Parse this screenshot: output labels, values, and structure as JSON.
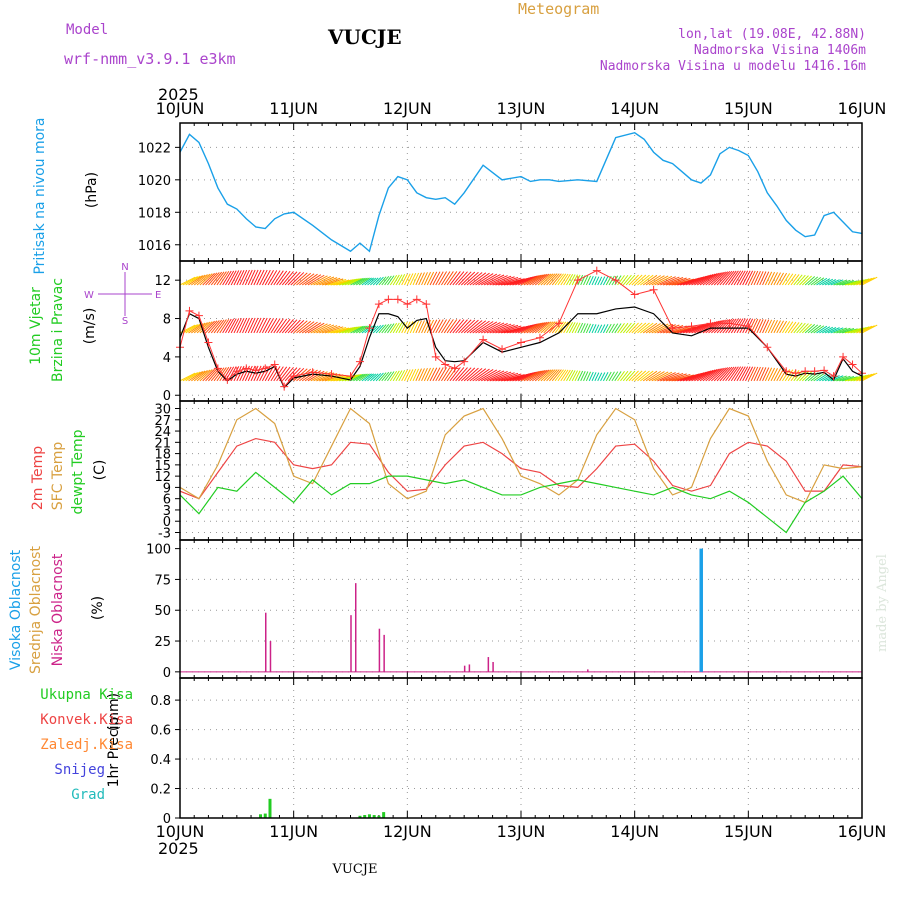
{
  "header": {
    "model_label": "Model",
    "model_name": "wrf-nmm_v3.9.1  e3km",
    "station": "VUCJE",
    "meteogram_label": "Meteogram",
    "coords": "lon,lat (19.08E, 42.88N)",
    "altitude": "Nadmorska Visina 1406m",
    "model_altitude": "Nadmorska Visina u modelu 1416.16m",
    "year_top": "2025",
    "year_bottom": "2025",
    "footer_station": "VUCJE",
    "credit": "made by Angel"
  },
  "colors": {
    "pressure": "#1aa0e8",
    "wind_label": "#22cc22",
    "wind_speed": "#000000",
    "wind_gust": "#ff3333",
    "temp2m": "#ee4444",
    "sfc_temp": "#d8a040",
    "dewpt": "#22cc22",
    "cloud_high": "#1aa0e8",
    "cloud_mid": "#d8a040",
    "cloud_low": "#cc2288",
    "precip_total": "#22cc22",
    "precip_conv": "#ee4444",
    "precip_frozen": "#ff8833",
    "snow": "#4444dd",
    "graupel": "#22bbbb",
    "purple": "#aa44cc"
  },
  "chart_data": [
    {
      "type": "line",
      "id": "pressure",
      "ylabel_name": "Pritisak na nivou mora",
      "ylabel_unit": "(hPa)",
      "x_ticks": [
        "10JUN",
        "11JUN",
        "12JUN",
        "13JUN",
        "14JUN",
        "15JUN",
        "16JUN"
      ],
      "ylim": [
        1015,
        1023.5
      ],
      "yticks": [
        1016,
        1018,
        1020,
        1022
      ],
      "x_hours": [
        0,
        2,
        4,
        6,
        8,
        10,
        12,
        14,
        16,
        18,
        20,
        22,
        24,
        28,
        32,
        36,
        38,
        40,
        42,
        44,
        46,
        48,
        50,
        52,
        54,
        56,
        58,
        60,
        64,
        68,
        72,
        74,
        76,
        78,
        80,
        84,
        88,
        92,
        96,
        98,
        100,
        102,
        104,
        106,
        108,
        110,
        112,
        114,
        116,
        118,
        120,
        122,
        124,
        126,
        128,
        130,
        132,
        134,
        136,
        138,
        140,
        142,
        144
      ],
      "values": [
        1021.7,
        1022.8,
        1022.3,
        1021,
        1019.5,
        1018.5,
        1018.2,
        1017.6,
        1017.1,
        1017,
        1017.6,
        1017.9,
        1018,
        1017.2,
        1016.3,
        1015.6,
        1016.1,
        1015.6,
        1017.8,
        1019.5,
        1020.2,
        1020,
        1019.2,
        1018.9,
        1018.8,
        1018.9,
        1018.5,
        1019.2,
        1020.9,
        1020,
        1020.2,
        1019.9,
        1020,
        1020,
        1019.9,
        1020,
        1019.9,
        1022.6,
        1022.9,
        1022.5,
        1021.7,
        1021.2,
        1021,
        1020.5,
        1020,
        1019.8,
        1020.3,
        1021.6,
        1022,
        1021.8,
        1021.5,
        1020.5,
        1019.2,
        1018.4,
        1017.5,
        1016.9,
        1016.5,
        1016.6,
        1017.8,
        1018,
        1017.4,
        1016.8,
        1016.7
      ]
    },
    {
      "type": "line",
      "id": "wind",
      "ylabel_name": "10m Vjetar",
      "ylabel_name2": "Brzina i Pravac",
      "ylabel_unit": "(m/s)",
      "compass": {
        "n": "N",
        "s": "S",
        "e": "E",
        "w": "W"
      },
      "ylim": [
        -0.6,
        14
      ],
      "yticks": [
        0,
        4,
        8,
        12
      ],
      "barb_levels": [
        1.5,
        6.5,
        11.5
      ],
      "series": [
        {
          "name": "speed",
          "x": [
            0,
            2,
            4,
            6,
            8,
            10,
            12,
            14,
            16,
            18,
            20,
            22,
            24,
            28,
            32,
            36,
            38,
            40,
            42,
            44,
            46,
            48,
            50,
            52,
            54,
            56,
            58,
            60,
            64,
            68,
            72,
            76,
            80,
            84,
            88,
            92,
            96,
            100,
            104,
            108,
            112,
            116,
            120,
            124,
            128,
            130,
            132,
            134,
            136,
            138,
            140,
            142,
            144
          ],
          "values": [
            6,
            8.5,
            8,
            5,
            2.5,
            1.5,
            2.2,
            2.5,
            2.3,
            2.5,
            3,
            0.8,
            1.8,
            2.2,
            2,
            1.6,
            3,
            6,
            8.5,
            8.5,
            8.2,
            7,
            7.8,
            8,
            5,
            3.6,
            3.5,
            3.6,
            5.5,
            4.5,
            5,
            5.5,
            6.5,
            8.5,
            8.5,
            9,
            9.2,
            8.5,
            6.5,
            6.2,
            7,
            7,
            7,
            5,
            2.2,
            2,
            2.3,
            2.2,
            2.4,
            1.6,
            3.8,
            2.5,
            2
          ]
        },
        {
          "name": "gust",
          "x": [
            0,
            2,
            4,
            6,
            8,
            10,
            12,
            14,
            16,
            18,
            20,
            22,
            24,
            28,
            32,
            36,
            38,
            40,
            42,
            44,
            46,
            48,
            50,
            52,
            54,
            56,
            58,
            60,
            64,
            68,
            72,
            76,
            80,
            84,
            88,
            92,
            96,
            100,
            104,
            108,
            112,
            116,
            120,
            124,
            128,
            130,
            132,
            134,
            136,
            138,
            140,
            142,
            144
          ],
          "values": [
            5,
            8.8,
            8.3,
            5.5,
            2.8,
            1.6,
            2.5,
            2.8,
            2.6,
            2.8,
            3.2,
            0.9,
            2,
            2.4,
            2.2,
            2,
            3.5,
            7,
            9.5,
            10,
            10,
            9.5,
            10,
            9.5,
            4,
            3.2,
            2.8,
            3.5,
            5.8,
            4.8,
            5.5,
            6,
            7.5,
            12,
            13,
            12,
            10.5,
            11,
            7,
            7.2,
            7.5,
            7.5,
            7.2,
            5,
            2.5,
            2.3,
            2.5,
            2.5,
            2.6,
            2,
            4,
            3.2,
            2.3
          ]
        }
      ]
    },
    {
      "type": "line",
      "id": "temperature",
      "ylabel_name": "2m Temp",
      "ylabel_name2": "SFC Temp",
      "ylabel_name3": "dewpt Temp",
      "ylabel_unit": "(C)",
      "ylim": [
        -5,
        32
      ],
      "yticks": [
        -3,
        0,
        3,
        6,
        9,
        12,
        15,
        18,
        21,
        24,
        27,
        30
      ],
      "series": [
        {
          "name": "2m Temp",
          "x": [
            0,
            4,
            8,
            12,
            16,
            20,
            24,
            28,
            32,
            36,
            40,
            44,
            48,
            52,
            56,
            60,
            64,
            68,
            72,
            76,
            80,
            84,
            88,
            92,
            96,
            100,
            104,
            108,
            112,
            116,
            120,
            124,
            128,
            132,
            136,
            140,
            144
          ],
          "values": [
            8,
            6,
            13,
            20,
            22,
            21,
            15,
            14,
            15,
            21,
            20.5,
            13,
            8,
            8.5,
            15,
            20,
            21,
            18,
            14,
            13,
            9.5,
            9,
            14,
            20,
            20.5,
            16,
            9.5,
            8,
            9.5,
            18,
            21,
            20,
            16,
            8,
            8,
            15,
            14.5
          ]
        },
        {
          "name": "SFC Temp",
          "x": [
            0,
            4,
            8,
            12,
            16,
            20,
            24,
            28,
            32,
            36,
            40,
            44,
            48,
            52,
            56,
            60,
            64,
            68,
            72,
            76,
            80,
            84,
            88,
            92,
            96,
            100,
            104,
            108,
            112,
            116,
            120,
            124,
            128,
            132,
            136,
            140,
            144
          ],
          "values": [
            9,
            6,
            15,
            27,
            30,
            26,
            12,
            10,
            20,
            30,
            26,
            10,
            6,
            8,
            23,
            28,
            30,
            22,
            12,
            10,
            7,
            11,
            23,
            30,
            27,
            14,
            7,
            9,
            22,
            30,
            28,
            16,
            7,
            5,
            15,
            14,
            14.5
          ]
        },
        {
          "name": "dewpt Temp",
          "x": [
            0,
            4,
            8,
            12,
            16,
            20,
            24,
            28,
            32,
            36,
            40,
            44,
            48,
            52,
            56,
            60,
            64,
            68,
            72,
            76,
            80,
            84,
            88,
            92,
            96,
            100,
            104,
            108,
            112,
            116,
            120,
            124,
            128,
            132,
            136,
            140,
            144
          ],
          "values": [
            7,
            2,
            9,
            8,
            13,
            9,
            5,
            11,
            7,
            10,
            10,
            12,
            12,
            11,
            10,
            11,
            9,
            7,
            7,
            9,
            10,
            11,
            10,
            9,
            8,
            7,
            9,
            7,
            6,
            8,
            5,
            1,
            -3,
            5,
            8,
            12,
            6
          ]
        }
      ]
    },
    {
      "type": "bar",
      "id": "clouds",
      "ylabel_name": "Visoka Oblacnost",
      "ylabel_name2": "Srednja Oblacnost",
      "ylabel_name3": "Niska Oblacnost",
      "ylabel_unit": "(%)",
      "ylim": [
        -5,
        107
      ],
      "yticks": [
        0,
        25,
        50,
        75,
        100
      ],
      "low_x": [
        18,
        19,
        36,
        37,
        42,
        43,
        60,
        61,
        65,
        66,
        86
      ],
      "low_values": [
        48,
        25,
        46,
        72,
        35,
        30,
        5,
        6,
        12,
        8,
        2
      ],
      "high_x": [
        110
      ],
      "high_values": [
        100
      ]
    },
    {
      "type": "bar",
      "id": "precip",
      "ylabel_name": "1hr Precip",
      "ylabel_unit": "(mm)",
      "legend": [
        "Ukupna Kisa",
        "Konvek.Kisa",
        "Zaledj.Kisa",
        "Snijeg",
        "Grad"
      ],
      "ylim": [
        0,
        0.95
      ],
      "yticks": [
        0,
        0.2,
        0.4,
        0.6,
        0.8
      ],
      "x": [
        17,
        18,
        19,
        38,
        39,
        40,
        41,
        42,
        43
      ],
      "values": [
        0.025,
        0.03,
        0.13,
        0.015,
        0.02,
        0.025,
        0.02,
        0.015,
        0.04
      ]
    }
  ]
}
